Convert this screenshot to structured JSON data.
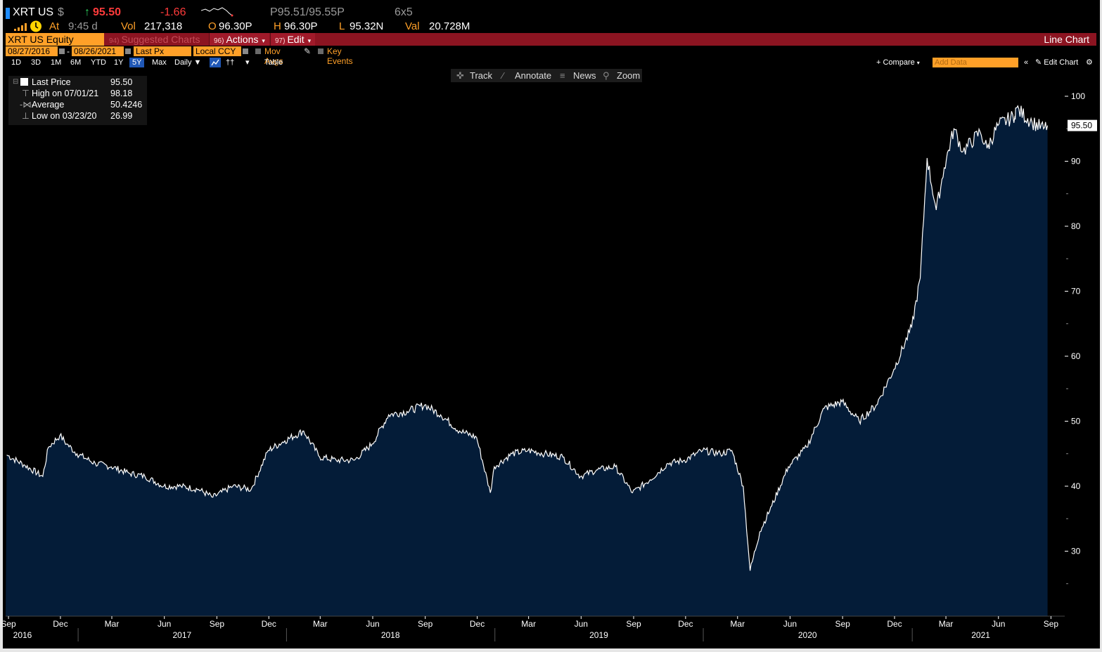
{
  "header": {
    "ticker": "XRT US",
    "currency": "$",
    "price": "95.50",
    "change": "-1.66",
    "bid_ask": "P95.51/95.55P",
    "size": "6x5",
    "at_label": "At",
    "time": "9:45 d",
    "vol_label": "Vol",
    "vol": "217,318",
    "open_label": "O",
    "open": "96.30P",
    "high_label": "H",
    "high": "96.30P",
    "low_label": "L",
    "low": "95.32N",
    "val_label": "Val",
    "val": "20.728M"
  },
  "toolbar": {
    "security": "XRT US Equity",
    "suggested": "Suggested Charts",
    "suggested_num": "94)",
    "actions_num": "96)",
    "actions": "Actions",
    "edit_num": "97)",
    "edit": "Edit",
    "view_title": "Line Chart"
  },
  "params": {
    "start_date": "08/27/2016",
    "end_date": "08/26/2021",
    "field": "Last Px",
    "currency": "Local CCY",
    "mov_avgs": "Mov Avgs",
    "key_events": "Key Events"
  },
  "periods": [
    "1D",
    "3D",
    "1M",
    "6M",
    "YTD",
    "1Y",
    "5Y",
    "Max"
  ],
  "selected_period": "5Y",
  "frequency": "Daily",
  "table_label": "Table",
  "compare_label": "+ Compare",
  "add_data_placeholder": "Add Data",
  "edit_chart_label": "Edit Chart",
  "chart_tools": {
    "track": "Track",
    "annotate": "Annotate",
    "news": "News",
    "zoom": "Zoom"
  },
  "legend": {
    "last_price_label": "Last Price",
    "last_price": "95.50",
    "high_label": "High on 07/01/21",
    "high": "98.18",
    "avg_label": "Average",
    "avg": "50.4246",
    "low_label": "Low on 03/23/20",
    "low": "26.99"
  },
  "colors": {
    "area_fill": "#041c38",
    "line": "#ffffff",
    "accent": "#ffa028",
    "bar": "#8c1421"
  },
  "chart_data": {
    "type": "area",
    "title": "",
    "xlabel": "",
    "ylabel": "",
    "ylim": [
      20,
      104
    ],
    "y_ticks": [
      30,
      40,
      50,
      60,
      70,
      80,
      90,
      100
    ],
    "last_value_label": "95.50",
    "month_ticks": [
      "Sep",
      "Dec",
      "Mar",
      "Jun",
      "Sep",
      "Dec",
      "Mar",
      "Jun",
      "Sep",
      "Dec",
      "Mar",
      "Jun",
      "Sep",
      "Dec",
      "Mar",
      "Jun",
      "Sep",
      "Dec",
      "Mar",
      "Jun",
      "Sep"
    ],
    "year_labels": [
      "2016",
      "2017",
      "2018",
      "2019",
      "2020",
      "2021"
    ],
    "series": [
      {
        "x": [
          "2016-08-29",
          "2016-09-30",
          "2016-10-31",
          "2016-11-10",
          "2016-11-30",
          "2016-12-12",
          "2016-12-30",
          "2017-01-31",
          "2017-02-28",
          "2017-03-31",
          "2017-04-28",
          "2017-05-31",
          "2017-06-30",
          "2017-07-31",
          "2017-08-25",
          "2017-09-29",
          "2017-10-31",
          "2017-11-30",
          "2017-12-29",
          "2018-01-31",
          "2018-02-28",
          "2018-03-29",
          "2018-04-30",
          "2018-05-31",
          "2018-06-29",
          "2018-07-31",
          "2018-08-31",
          "2018-09-28",
          "2018-10-31",
          "2018-11-30",
          "2018-12-24",
          "2018-12-31",
          "2019-01-31",
          "2019-02-28",
          "2019-03-29",
          "2019-04-30",
          "2019-05-31",
          "2019-06-28",
          "2019-07-31",
          "2019-08-30",
          "2019-09-30",
          "2019-10-31",
          "2019-11-29",
          "2019-12-31",
          "2020-01-31",
          "2020-02-20",
          "2020-03-11",
          "2020-03-23",
          "2020-04-09",
          "2020-04-30",
          "2020-05-29",
          "2020-06-30",
          "2020-07-31",
          "2020-08-31",
          "2020-09-30",
          "2020-10-30",
          "2020-11-30",
          "2020-12-31",
          "2021-01-15",
          "2021-01-27",
          "2021-02-12",
          "2021-02-26",
          "2021-03-15",
          "2021-03-31",
          "2021-04-30",
          "2021-05-12",
          "2021-05-31",
          "2021-06-30",
          "2021-07-01",
          "2021-07-30",
          "2021-08-19",
          "2021-08-26"
        ],
        "values": [
          44.8,
          43.2,
          41.5,
          46.0,
          47.8,
          46.5,
          45.0,
          43.5,
          43.0,
          42.0,
          41.5,
          40.0,
          40.0,
          39.5,
          38.3,
          40.0,
          39.5,
          45.5,
          47.0,
          48.5,
          44.5,
          44.0,
          44.0,
          46.5,
          51.0,
          51.5,
          52.5,
          51.0,
          48.5,
          47.5,
          39.0,
          43.0,
          45.0,
          45.5,
          45.0,
          44.5,
          41.5,
          42.5,
          43.0,
          39.0,
          41.0,
          43.5,
          44.0,
          45.5,
          45.0,
          45.5,
          40.0,
          27.0,
          33.0,
          37.0,
          43.0,
          46.0,
          52.0,
          53.0,
          50.0,
          52.5,
          58.0,
          64.5,
          72.0,
          90.5,
          82.5,
          89.0,
          95.0,
          91.5,
          94.5,
          92.0,
          95.5,
          97.0,
          98.18,
          96.0,
          95.0,
          95.5
        ]
      }
    ]
  }
}
